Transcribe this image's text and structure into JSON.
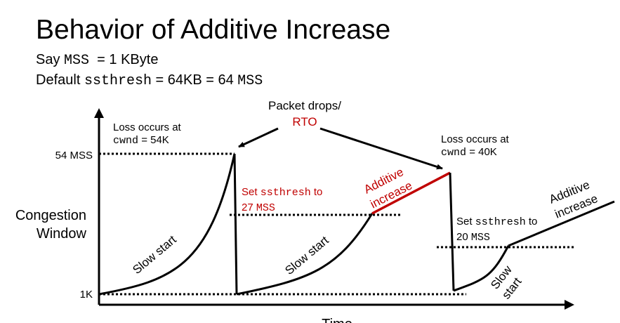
{
  "title": "Behavior of Additive Increase",
  "say_line": {
    "prefix": "Say",
    "mss": "MSS",
    "value": "= 1 KByte"
  },
  "default_line": {
    "prefix": "Default",
    "ssthresh": "ssthresh",
    "value": "= 64KB = 64",
    "mss": "MSS"
  },
  "axes": {
    "y_label_line1": "Congestion",
    "y_label_line2": "Window",
    "x_label": "Time",
    "tick_54": "54 MSS",
    "tick_1k": "1K"
  },
  "annotations": {
    "packet_drops": "Packet drops/",
    "rto": "RTO",
    "loss1_line1": "Loss occurs at",
    "loss1_cwnd": "cwnd",
    "loss1_value": "= 54K",
    "loss2_line1": "Loss occurs at",
    "loss2_cwnd": "cwnd",
    "loss2_value": "= 40K",
    "set1_prefix": "Set",
    "set1_ssthresh": "ssthresh",
    "set1_to": "to",
    "set1_value": "27",
    "set1_mss": "MSS",
    "set2_prefix": "Set",
    "set2_ssthresh": "ssthresh",
    "set2_to": "to",
    "set2_value": "20",
    "set2_mss": "MSS",
    "slow_start_1": "Slow start",
    "slow_start_2": "Slow start",
    "slow_3a": "Slow",
    "slow_3b": "start",
    "additive_1a": "Additive",
    "additive_1b": "increase",
    "additive_2a": "Additive",
    "additive_2b": "increase"
  },
  "colors": {
    "accent": "#c00000",
    "line": "#000000"
  }
}
